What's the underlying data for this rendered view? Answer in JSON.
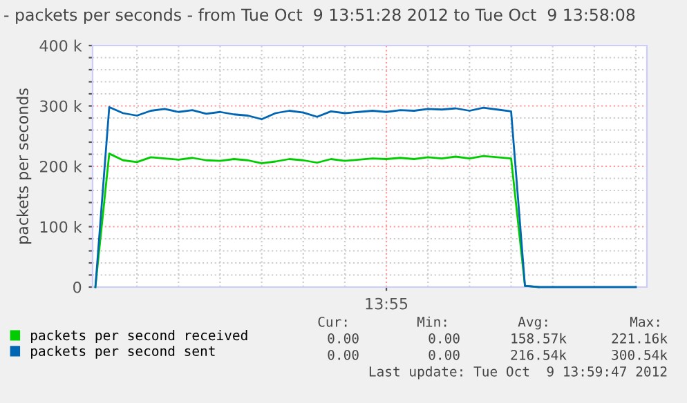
{
  "chart_data": {
    "type": "line",
    "title": "- packets per seconds - from Tue Oct  9 13:51:28 2012 to Tue Oct  9 13:58:08",
    "ylabel": "packets per seconds",
    "categories": [
      null,
      null,
      null,
      null,
      null,
      null,
      null,
      null,
      null,
      null,
      null,
      null,
      null,
      null,
      null,
      null,
      null,
      null,
      null,
      null,
      null,
      "13:55",
      null,
      null,
      null,
      null,
      null,
      null,
      null,
      null,
      null,
      null,
      null,
      null,
      null,
      null,
      null,
      null,
      null,
      null
    ],
    "series": [
      {
        "name": "packets per second received",
        "color": "#00cc00",
        "values": [
          0,
          221000,
          210000,
          207000,
          215000,
          213000,
          211000,
          214000,
          210000,
          209000,
          212000,
          210000,
          205000,
          208000,
          212000,
          210000,
          206000,
          212000,
          209000,
          211000,
          213000,
          212000,
          214000,
          212000,
          215000,
          213000,
          216000,
          213000,
          217000,
          215000,
          213000,
          2000,
          0,
          null,
          null,
          null,
          null,
          null,
          null,
          null
        ]
      },
      {
        "name": "packets per second sent",
        "color": "#0066b3",
        "values": [
          0,
          298000,
          288000,
          284000,
          292000,
          295000,
          290000,
          293000,
          287000,
          290000,
          286000,
          284000,
          278000,
          288000,
          292000,
          289000,
          282000,
          291000,
          288000,
          290000,
          292000,
          290000,
          293000,
          292000,
          295000,
          294000,
          296000,
          292000,
          297000,
          294000,
          291000,
          2000,
          0,
          0,
          0,
          0,
          0,
          0,
          0,
          0
        ]
      }
    ],
    "ylim": [
      0,
      400000
    ],
    "yticks": [
      {
        "value": 0,
        "label": "0"
      },
      {
        "value": 20000,
        "label": null
      },
      {
        "value": 40000,
        "label": null
      },
      {
        "value": 60000,
        "label": null
      },
      {
        "value": 80000,
        "label": null
      },
      {
        "value": 100000,
        "label": "100 k"
      },
      {
        "value": 120000,
        "label": null
      },
      {
        "value": 140000,
        "label": null
      },
      {
        "value": 160000,
        "label": null
      },
      {
        "value": 180000,
        "label": null
      },
      {
        "value": 200000,
        "label": "200 k"
      },
      {
        "value": 220000,
        "label": null
      },
      {
        "value": 240000,
        "label": null
      },
      {
        "value": 260000,
        "label": null
      },
      {
        "value": 280000,
        "label": null
      },
      {
        "value": 300000,
        "label": "300 k"
      },
      {
        "value": 320000,
        "label": null
      },
      {
        "value": 340000,
        "label": null
      },
      {
        "value": 360000,
        "label": null
      },
      {
        "value": 380000,
        "label": null
      },
      {
        "value": 400000,
        "label": "400 k"
      }
    ],
    "grid": true,
    "legend": "bottom left",
    "marker": "none",
    "line_style": "solid",
    "annotations": [
      "Cur:",
      "Min:",
      "Avg:",
      "Max:",
      "0.00",
      "0.00",
      "158.57k",
      "221.16k",
      "0.00",
      "0.00",
      "216.54k",
      "300.54k",
      "Last update: Tue Oct  9 13:59:47 2012"
    ]
  }
}
